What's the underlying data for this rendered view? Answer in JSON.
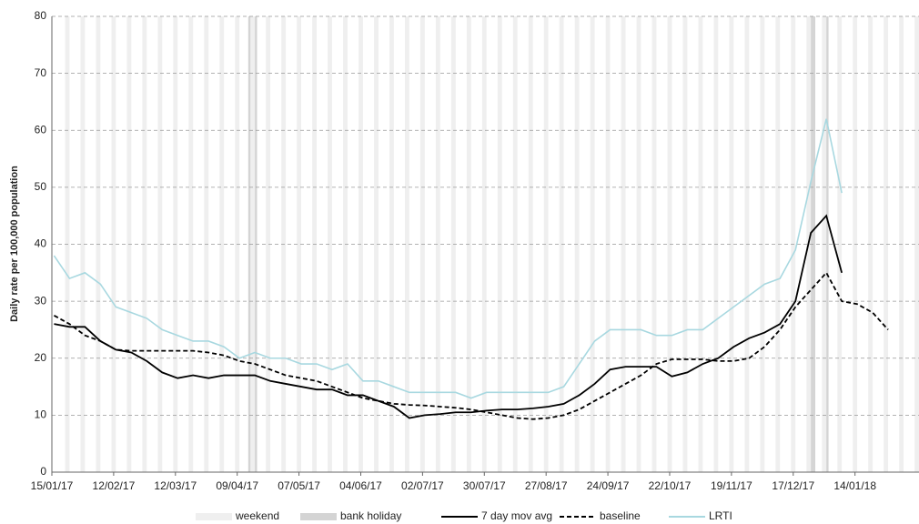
{
  "chart_data": {
    "type": "line",
    "y_label": "Daily rate per 100,000 population",
    "weekend_label": "weekend",
    "weekend_color": "#efefef",
    "bank_holiday_label": "bank holiday",
    "bank_holiday_color": "#d4d4d4",
    "bank_holidays": [
      "14/04/17",
      "17/04/17",
      "25/12/17",
      "26/12/17",
      "01/01/18"
    ],
    "x": [
      "16/01/17",
      "23/01/17",
      "30/01/17",
      "06/02/17",
      "13/02/17",
      "20/02/17",
      "27/02/17",
      "06/03/17",
      "13/03/17",
      "20/03/17",
      "27/03/17",
      "03/04/17",
      "10/04/17",
      "17/04/17",
      "24/04/17",
      "01/05/17",
      "08/05/17",
      "15/05/17",
      "22/05/17",
      "29/05/17",
      "05/06/17",
      "12/06/17",
      "19/06/17",
      "26/06/17",
      "03/07/17",
      "10/07/17",
      "17/07/17",
      "24/07/17",
      "31/07/17",
      "07/08/17",
      "14/08/17",
      "21/08/17",
      "28/08/17",
      "04/09/17",
      "11/09/17",
      "18/09/17",
      "25/09/17",
      "02/10/17",
      "09/10/17",
      "16/10/17",
      "23/10/17",
      "30/10/17",
      "06/11/17",
      "13/11/17",
      "20/11/17",
      "27/11/17",
      "04/12/17",
      "11/12/17",
      "18/12/17",
      "25/12/17",
      "01/01/18",
      "08/01/18",
      "15/01/18",
      "22/01/18",
      "29/01/18"
    ],
    "series": [
      {
        "name": "7 day mov avg",
        "color": "#000000",
        "dash": "solid",
        "values": [
          26,
          25.5,
          25.5,
          23,
          21.5,
          21,
          19.5,
          17.5,
          16.5,
          17,
          16.5,
          17,
          17,
          17,
          16,
          15.5,
          15,
          14.5,
          14.5,
          13.5,
          13.5,
          12.5,
          11.5,
          9.5,
          10,
          10.2,
          10.5,
          10.5,
          10.8,
          11,
          11,
          11.2,
          11.5,
          12,
          13.5,
          15.5,
          18,
          18.5,
          18.5,
          18.5,
          16.8,
          17.5,
          19,
          20,
          22,
          23.5,
          24.5,
          26,
          30,
          42,
          45,
          35,
          null,
          null,
          null
        ]
      },
      {
        "name": "baseline",
        "color": "#000000",
        "dash": "dashed",
        "values": [
          27.5,
          26,
          24,
          23,
          21.5,
          21.3,
          21.3,
          21.3,
          21.3,
          21.3,
          21,
          20.5,
          19.5,
          19,
          18,
          17,
          16.5,
          16,
          15,
          14,
          13,
          12.5,
          12,
          11.8,
          11.7,
          11.5,
          11.3,
          11,
          10.5,
          10,
          9.5,
          9.3,
          9.5,
          10,
          11,
          12.5,
          14,
          15.5,
          17,
          19,
          19.8,
          19.8,
          19.8,
          19.5,
          19.5,
          20,
          22,
          25,
          29,
          32,
          35,
          30,
          29.5,
          28,
          25
        ]
      },
      {
        "name": "LRTI",
        "color": "#a8d8e0",
        "dash": "solid",
        "values": [
          38,
          34,
          35,
          33,
          29,
          28,
          27,
          25,
          24,
          23,
          23,
          22,
          20,
          21,
          20,
          20,
          19,
          19,
          18,
          19,
          16,
          16,
          15,
          14,
          14,
          14,
          14,
          13,
          14,
          14,
          14,
          14,
          14,
          15,
          19,
          23,
          25,
          25,
          25,
          24,
          24,
          25,
          25,
          27,
          29,
          31,
          33,
          34,
          39,
          51,
          62,
          49,
          null,
          null,
          null
        ]
      }
    ],
    "xlim": [
      "15/01/17",
      "12/02/18"
    ],
    "xticks": [
      "15/01/17",
      "12/02/17",
      "12/03/17",
      "09/04/17",
      "07/05/17",
      "04/06/17",
      "02/07/17",
      "30/07/17",
      "27/08/17",
      "24/09/17",
      "22/10/17",
      "19/11/17",
      "17/12/17",
      "14/01/18"
    ],
    "ylim": [
      0,
      80
    ],
    "yticks": [
      0,
      10,
      20,
      30,
      40,
      50,
      60,
      70,
      80
    ],
    "grid": true
  }
}
